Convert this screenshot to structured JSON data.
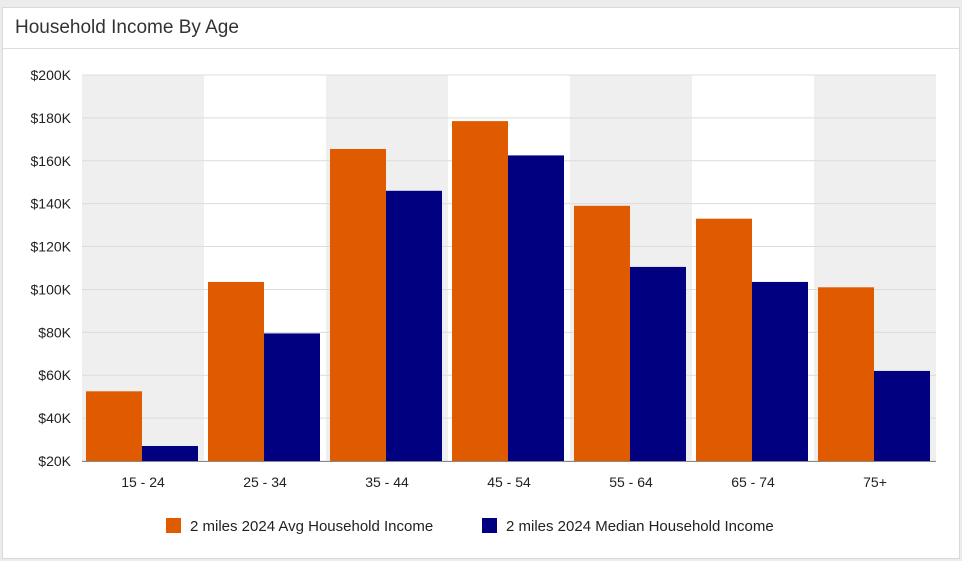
{
  "panel": {
    "title": "Household Income By Age"
  },
  "chart_data": {
    "type": "bar",
    "title": "Household Income By Age",
    "xlabel": "",
    "ylabel": "",
    "categories": [
      "15 - 24",
      "25 - 34",
      "35 - 44",
      "45 - 54",
      "55 - 64",
      "65 - 74",
      "75+"
    ],
    "series": [
      {
        "name": "2 miles 2024 Avg Household Income",
        "color": "#E05A00",
        "values": [
          52500,
          103500,
          165500,
          178500,
          139000,
          133000,
          101000
        ]
      },
      {
        "name": "2 miles 2024 Median Household Income",
        "color": "#000080",
        "values": [
          27000,
          79500,
          146000,
          162500,
          110500,
          103500,
          62000
        ]
      }
    ],
    "ylim": [
      20000,
      200000
    ],
    "yticks": [
      20000,
      40000,
      60000,
      80000,
      100000,
      120000,
      140000,
      160000,
      180000,
      200000
    ],
    "ytick_labels": [
      "$20K",
      "$40K",
      "$60K",
      "$80K",
      "$100K",
      "$120K",
      "$140K",
      "$160K",
      "$180K",
      "$200K"
    ],
    "grid": true,
    "band_colors": [
      "#efefef",
      "#ffffff"
    ],
    "legend_position": "bottom"
  }
}
